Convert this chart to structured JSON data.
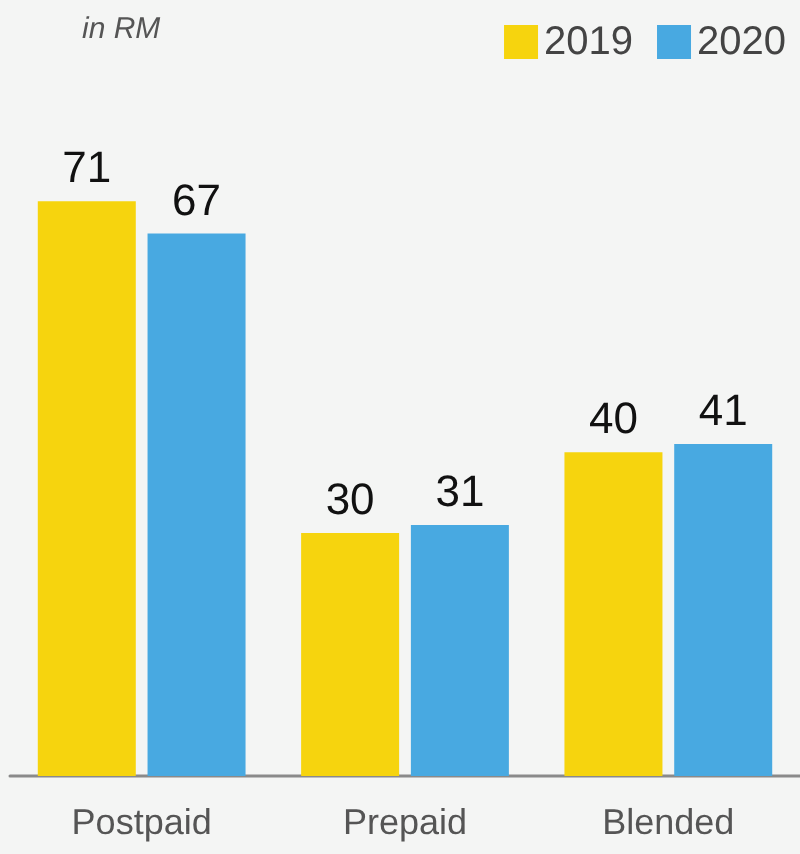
{
  "chart_data": {
    "type": "bar",
    "subtitle": "in RM",
    "categories": [
      "Postpaid",
      "Prepaid",
      "Blended"
    ],
    "series": [
      {
        "name": "2019",
        "color": "#f6d40e",
        "values": [
          71,
          30,
          40
        ]
      },
      {
        "name": "2020",
        "color": "#48a9e1",
        "values": [
          67,
          31,
          41
        ]
      }
    ],
    "data_labels": true,
    "legend": "top right"
  }
}
